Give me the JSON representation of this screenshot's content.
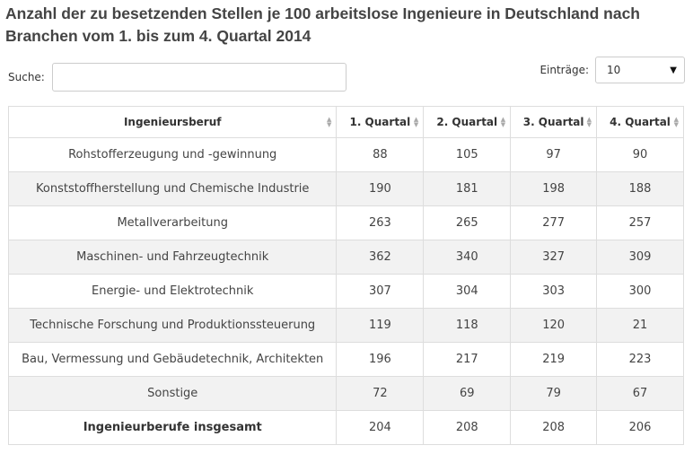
{
  "title": "Anzahl der zu besetzenden Stellen je 100 arbeitslose Ingenieure in Deutschland nach Branchen vom 1. bis zum 4. Quartal 2014",
  "search": {
    "label": "Suche:",
    "value": "",
    "placeholder": ""
  },
  "entries": {
    "label": "Einträge:",
    "selected": "10"
  },
  "table": {
    "headers": [
      "Ingenieursberuf",
      "1. Quartal",
      "2. Quartal",
      "3. Quartal",
      "4. Quartal"
    ],
    "rows": [
      {
        "name": "Rohstofferzeugung und -gewinnung",
        "q1": "88",
        "q2": "105",
        "q3": "97",
        "q4": "90"
      },
      {
        "name": "Konststoffherstellung und Chemische Industrie",
        "q1": "190",
        "q2": "181",
        "q3": "198",
        "q4": "188"
      },
      {
        "name": "Metallverarbeitung",
        "q1": "263",
        "q2": "265",
        "q3": "277",
        "q4": "257"
      },
      {
        "name": "Maschinen- und Fahrzeugtechnik",
        "q1": "362",
        "q2": "340",
        "q3": "327",
        "q4": "309"
      },
      {
        "name": "Energie- und Elektrotechnik",
        "q1": "307",
        "q2": "304",
        "q3": "303",
        "q4": "300"
      },
      {
        "name": "Technische Forschung und Produktionssteuerung",
        "q1": "119",
        "q2": "118",
        "q3": "120",
        "q4": "21"
      },
      {
        "name": "Bau, Vermessung und Gebäudetechnik, Architekten",
        "q1": "196",
        "q2": "217",
        "q3": "219",
        "q4": "223"
      },
      {
        "name": "Sonstige",
        "q1": "72",
        "q2": "69",
        "q3": "79",
        "q4": "67"
      },
      {
        "name": "Ingenieurberufe insgesamt",
        "q1": "204",
        "q2": "208",
        "q3": "208",
        "q4": "206"
      }
    ]
  }
}
